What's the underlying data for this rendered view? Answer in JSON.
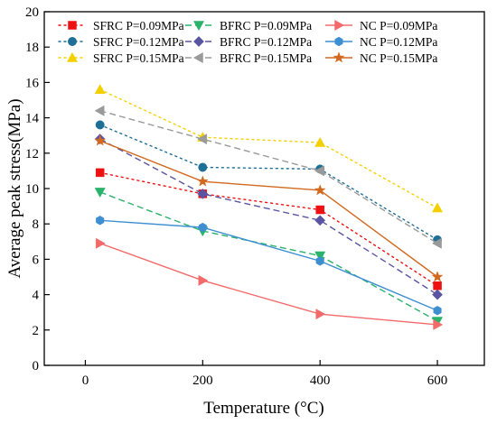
{
  "chart_data": {
    "type": "line",
    "title": "",
    "xlabel": "Temperature (°C)",
    "ylabel": "Average peak stress(MPa)",
    "xlim": [
      -70,
      680
    ],
    "ylim": [
      0,
      20
    ],
    "xticks": [
      0,
      200,
      400,
      600
    ],
    "yticks": [
      0,
      2,
      4,
      6,
      8,
      10,
      12,
      14,
      16,
      18,
      20
    ],
    "x": [
      25,
      200,
      400,
      600
    ],
    "grid": false,
    "legend_position": "top",
    "series": [
      {
        "name": "SFRC  P=0.09MPa",
        "values": [
          10.9,
          9.7,
          8.8,
          4.5
        ],
        "color": "#ee1111",
        "marker": "square",
        "line": "dotted"
      },
      {
        "name": "SFRC  P=0.12MPa",
        "values": [
          13.6,
          11.2,
          11.1,
          7.1
        ],
        "color": "#1e6f96",
        "marker": "circle",
        "line": "dotted"
      },
      {
        "name": "SFRC  P=0.15MPa",
        "values": [
          15.6,
          12.9,
          12.6,
          8.9
        ],
        "color": "#f5d000",
        "marker": "triangle-up",
        "line": "dotted"
      },
      {
        "name": "BFRC  P=0.09MPa",
        "values": [
          9.8,
          7.6,
          6.2,
          2.5
        ],
        "color": "#2ab36a",
        "marker": "triangle-down",
        "line": "dashed"
      },
      {
        "name": "BFRC  P=0.12MPa",
        "values": [
          12.8,
          9.7,
          8.2,
          4.0
        ],
        "color": "#5a55a2",
        "marker": "diamond",
        "line": "dashed"
      },
      {
        "name": "BFRC  P=0.15MPa",
        "values": [
          14.4,
          12.8,
          11.0,
          6.9
        ],
        "color": "#9a9a9a",
        "marker": "triangle-left",
        "line": "dashed"
      },
      {
        "name": "NC  P=0.09MPa",
        "values": [
          6.9,
          4.8,
          2.9,
          2.3
        ],
        "color": "#f26b6b",
        "marker": "triangle-right",
        "line": "solid"
      },
      {
        "name": "NC  P=0.12MPa",
        "values": [
          8.2,
          7.8,
          5.9,
          3.1
        ],
        "color": "#3d8fd1",
        "marker": "hexagon",
        "line": "solid"
      },
      {
        "name": "NC  P=0.15MPa",
        "values": [
          12.7,
          10.4,
          9.9,
          5.0
        ],
        "color": "#d2691e",
        "marker": "star",
        "line": "solid"
      }
    ]
  }
}
